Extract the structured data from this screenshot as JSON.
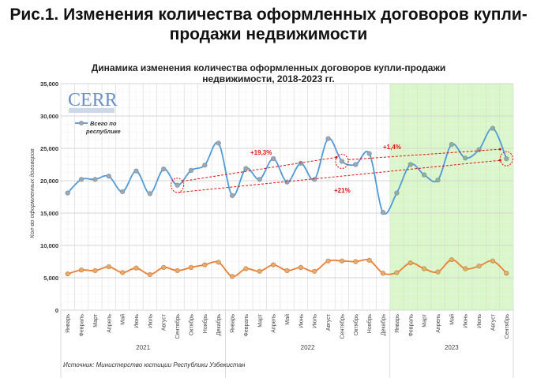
{
  "header": {
    "title_line1": "Рис.1. Изменения количества оформленных договоров купли-",
    "title_line2": "продажи недвижимости"
  },
  "logo": "CERR",
  "source": "Источник: Министерство юстиции Республики Узбекистан",
  "colors": {
    "blue": "#4f9bd9",
    "orange": "#ed7d31",
    "highlight": "#d9f7c9",
    "annotation": "#e01010",
    "marker": "#9aa7b5"
  },
  "chart_data": {
    "type": "line",
    "title": "Динамика изменения количества оформленных договоров купли-продажи недвижимости, 2018-2023 гг.",
    "title_line1": "Динамика изменения количества оформленных договоров купли-продажи",
    "title_line2": "недвижимости, 2018-2023 гг.",
    "ylabel": "Кол-во оформленных договоров",
    "ylim": [
      0,
      35000
    ],
    "yticks": [
      "0",
      "5,000",
      "10,000",
      "15,000",
      "20,000",
      "25,000",
      "30,000",
      "35,000"
    ],
    "grid": true,
    "legend_position": "top-left",
    "years": [
      "2021",
      "2022",
      "2023"
    ],
    "categories": [
      "Январь",
      "Февраль",
      "Март",
      "Апрель",
      "Май",
      "Июнь",
      "Июль",
      "Август",
      "Сентябрь",
      "Октябрь",
      "Ноябрь",
      "Декабрь",
      "Январь",
      "Февраль",
      "Март",
      "Апрель",
      "Май",
      "Июнь",
      "Июль",
      "Август",
      "Сентябрь",
      "Октябрь",
      "Ноябрь",
      "Декабрь",
      "Январь",
      "Февраль",
      "Март",
      "Апрель",
      "Май",
      "Июнь",
      "Июль",
      "Август",
      "Сентябрь"
    ],
    "highlight_year": "2023",
    "series": [
      {
        "name": "Всего по республике",
        "name_line1": "Всего по",
        "name_line2": "республике",
        "values": [
          18100,
          20200,
          20200,
          20700,
          18300,
          21500,
          18000,
          21800,
          19300,
          21600,
          22400,
          25800,
          17700,
          21900,
          20200,
          23400,
          19800,
          22700,
          20200,
          26500,
          23000,
          22500,
          24200,
          15100,
          18100,
          22500,
          20900,
          20100,
          25600,
          23500,
          24800,
          28100,
          23400
        ]
      },
      {
        "values": [
          5600,
          6200,
          6100,
          6700,
          5800,
          6500,
          5500,
          6600,
          6100,
          6600,
          7000,
          7400,
          5200,
          6400,
          6000,
          7000,
          6100,
          6600,
          6000,
          7600,
          7600,
          7500,
          7700,
          5700,
          5800,
          7300,
          6400,
          5900,
          7800,
          6400,
          6800,
          7600,
          5700
        ]
      }
    ],
    "annotations": [
      {
        "text": "+19,3%",
        "from": "Сентябрь 2021",
        "to": "Сентябрь 2022"
      },
      {
        "text": "+1,4%",
        "from": "Сентябрь 2022",
        "to": "Сентябрь 2023"
      },
      {
        "text": "+21%",
        "from": "Сентябрь 2021",
        "to": "Сентябрь 2023"
      }
    ]
  }
}
